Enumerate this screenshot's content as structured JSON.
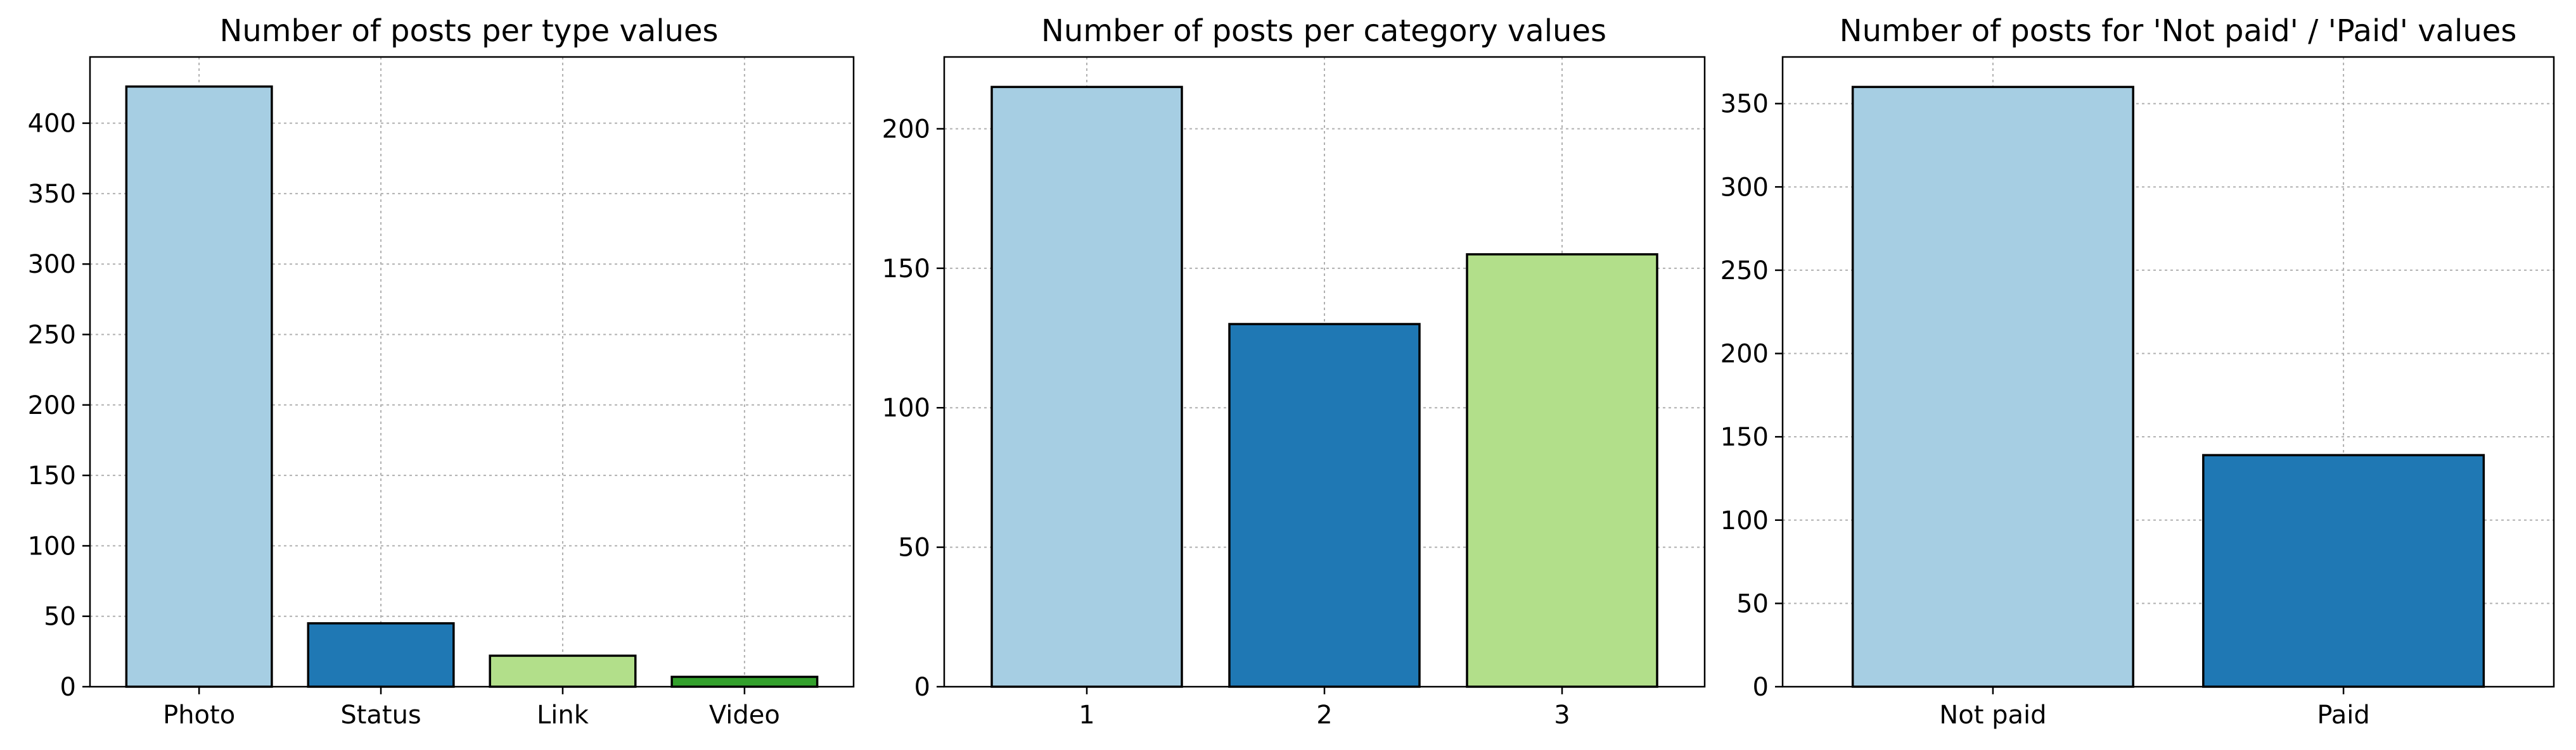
{
  "chart_data": [
    {
      "type": "bar",
      "title": "Number of posts per type values",
      "xlabel": "",
      "ylabel": "",
      "categories": [
        "Photo",
        "Status",
        "Link",
        "Video"
      ],
      "values": [
        426,
        45,
        22,
        7
      ],
      "colors": [
        "#a6cee3",
        "#1f78b4",
        "#b2df8a",
        "#33a02c"
      ],
      "ylim": [
        0,
        447
      ],
      "yticks": [
        "0",
        "50",
        "100",
        "150",
        "200",
        "250",
        "300",
        "350",
        "400"
      ],
      "grid": true
    },
    {
      "type": "bar",
      "title": "Number of posts per category values",
      "xlabel": "",
      "ylabel": "",
      "categories": [
        "1",
        "2",
        "3"
      ],
      "values": [
        215,
        130,
        155
      ],
      "colors": [
        "#a6cee3",
        "#1f78b4",
        "#b2df8a"
      ],
      "ylim": [
        0,
        225.75
      ],
      "yticks": [
        "0",
        "50",
        "100",
        "150",
        "200"
      ],
      "grid": true
    },
    {
      "type": "bar",
      "title": "Number of posts for 'Not paid' / 'Paid' values",
      "xlabel": "",
      "ylabel": "",
      "categories": [
        "Not paid",
        "Paid"
      ],
      "values": [
        360,
        139
      ],
      "colors": [
        "#a6cee3",
        "#1f78b4"
      ],
      "ylim": [
        0,
        378
      ],
      "yticks": [
        "0",
        "50",
        "100",
        "150",
        "200",
        "250",
        "300",
        "350"
      ],
      "grid": true
    }
  ]
}
